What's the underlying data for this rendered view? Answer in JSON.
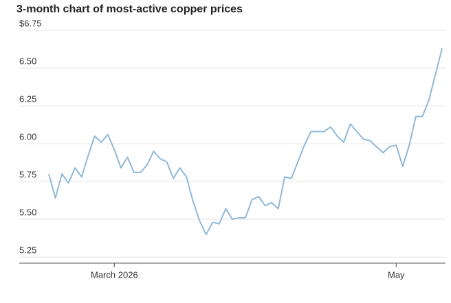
{
  "chart_data": {
    "type": "line",
    "title": "3-month chart of most-active copper prices",
    "categories": [
      null,
      null,
      null,
      null,
      null,
      null,
      null,
      null,
      null,
      null,
      "March 2026",
      null,
      null,
      null,
      null,
      null,
      null,
      null,
      null,
      null,
      null,
      null,
      null,
      null,
      null,
      null,
      null,
      null,
      null,
      null,
      null,
      null,
      null,
      null,
      null,
      null,
      null,
      null,
      null,
      null,
      null,
      null,
      null,
      null,
      null,
      null,
      null,
      null,
      null,
      null,
      null,
      null,
      null,
      "May",
      null,
      null,
      null,
      null,
      null,
      null,
      null
    ],
    "series": [
      {
        "name": "Copper",
        "color": "#8fb8d8",
        "values": [
          5.8,
          5.64,
          5.8,
          5.74,
          5.84,
          5.78,
          5.92,
          6.05,
          6.01,
          6.06,
          5.96,
          5.84,
          5.91,
          5.81,
          5.81,
          5.86,
          5.95,
          5.9,
          5.88,
          5.77,
          5.84,
          5.78,
          5.62,
          5.49,
          5.4,
          5.48,
          5.47,
          5.57,
          5.5,
          5.51,
          5.51,
          5.63,
          5.65,
          5.59,
          5.61,
          5.57,
          5.78,
          5.77,
          5.88,
          5.99,
          6.08,
          6.08,
          6.08,
          6.11,
          6.05,
          6.01,
          6.13,
          6.08,
          6.03,
          6.02,
          5.98,
          5.94,
          5.98,
          5.99,
          5.85,
          5.99,
          6.18,
          6.18,
          6.29,
          6.46,
          6.63
        ]
      }
    ],
    "ylim": [
      5.21,
      6.75
    ],
    "yticks": [
      {
        "value": 6.75,
        "label": "$6.75"
      },
      {
        "value": 6.5,
        "label": "6.50"
      },
      {
        "value": 6.25,
        "label": "6.25"
      },
      {
        "value": 6.0,
        "label": "6.00"
      },
      {
        "value": 5.75,
        "label": "5.75"
      },
      {
        "value": 5.5,
        "label": "5.50"
      },
      {
        "value": 5.25,
        "label": "5.25"
      }
    ],
    "grid": true
  }
}
